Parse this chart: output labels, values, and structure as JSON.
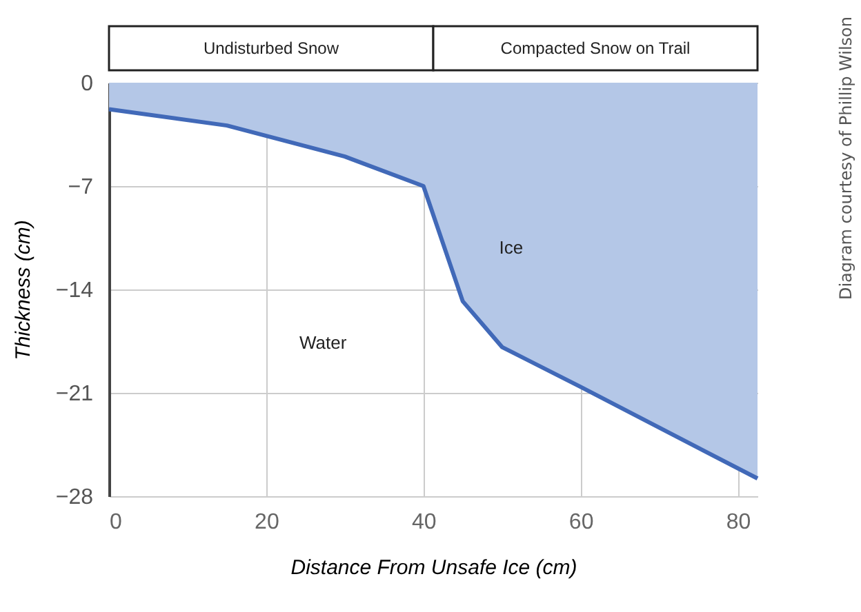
{
  "chart_data": {
    "type": "area",
    "xlabel": "Distance From Unsafe Ice (cm)",
    "ylabel": "Thickness (cm)",
    "x": [
      0,
      15,
      30,
      40,
      45,
      50,
      60,
      82.5
    ],
    "series": [
      {
        "color": "#4169b8",
        "values": [
          -1.8,
          -2.9,
          -5.0,
          -7.0,
          -14.8,
          -17.9,
          -20.6,
          -26.8
        ]
      }
    ],
    "xlim": [
      0,
      82.5
    ],
    "xticks": [
      0,
      20,
      40,
      60,
      80
    ],
    "ylim": [
      -28,
      0
    ],
    "yticks": [
      0,
      -7,
      -14,
      -21,
      -28
    ],
    "grid": true,
    "annotations": [
      "Undisturbed Snow",
      "Compacted Snow on Trail",
      "Ice",
      "Water",
      "Diagram courtesy of Phillip Wilson"
    ]
  }
}
